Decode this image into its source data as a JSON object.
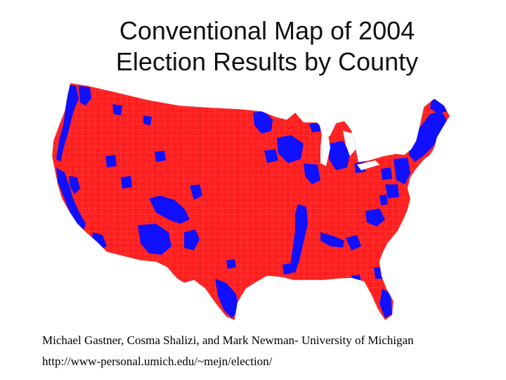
{
  "slide": {
    "title_line1": "Conventional Map of 2004",
    "title_line2": "Election Results by County",
    "credit": "Michael Gastner, Cosma Shalizi, and Mark Newman- University of Michigan",
    "url": "http://www-personal.umich.edu/~mejn/election/"
  },
  "map": {
    "colors": {
      "republican": "#ff1f1f",
      "democratic": "#1010ff",
      "county_border": "#ff6a6a"
    }
  }
}
